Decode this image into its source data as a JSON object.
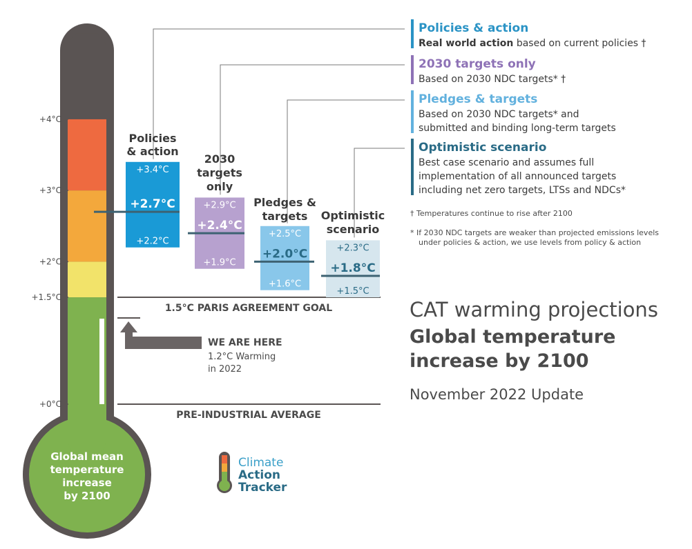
{
  "chart_data": {
    "type": "range-bar",
    "yunit": "°C",
    "ylim": [
      0,
      5.2
    ],
    "y_ticks": [
      {
        "value": 0,
        "label": "+0°C"
      },
      {
        "value": 1.5,
        "label": "+1.5°C"
      },
      {
        "value": 2,
        "label": "+2°C"
      },
      {
        "value": 3,
        "label": "+3°C"
      },
      {
        "value": 4,
        "label": "+4°C"
      }
    ],
    "thermometer_label": [
      "Global mean",
      "temperature",
      "increase",
      "by 2100"
    ],
    "color_bands": [
      {
        "from": 0,
        "to": 1.5,
        "color": "#7fb24f"
      },
      {
        "from": 1.5,
        "to": 2,
        "color": "#f2e36a"
      },
      {
        "from": 2,
        "to": 3,
        "color": "#f3a83c"
      },
      {
        "from": 3,
        "to": 4,
        "color": "#ee6a40"
      },
      {
        "from": 4,
        "to": 5.2,
        "color": "#5a5453"
      }
    ],
    "series": [
      {
        "name": "Policies & action",
        "label_lines": [
          "Policies",
          "& action"
        ],
        "low": 2.2,
        "median": 2.7,
        "high": 3.4,
        "low_label": "+2.2°C",
        "median_label": "+2.7°C",
        "high_label": "+3.4°C",
        "color": "#1a9ad6",
        "text_color": "#ffffff"
      },
      {
        "name": "2030 targets only",
        "label_lines": [
          "2030",
          "targets",
          "only"
        ],
        "low": 1.9,
        "median": 2.4,
        "high": 2.9,
        "low_label": "+1.9°C",
        "median_label": "+2.4°C",
        "high_label": "+2.9°C",
        "color": "#b7a1cf",
        "text_color": "#ffffff"
      },
      {
        "name": "Pledges & targets",
        "label_lines": [
          "Pledges &",
          "targets"
        ],
        "low": 1.6,
        "median": 2.0,
        "high": 2.5,
        "low_label": "+1.6°C",
        "median_label": "+2.0°C",
        "high_label": "+2.5°C",
        "color": "#89c7ea",
        "text_color": "#ffffff"
      },
      {
        "name": "Optimistic scenario",
        "label_lines": [
          "Optimistic",
          "scenario"
        ],
        "low": 1.5,
        "median": 1.8,
        "high": 2.3,
        "low_label": "+1.5°C",
        "median_label": "+1.8°C",
        "high_label": "+2.3°C",
        "color": "#d6e6ee",
        "text_color": "#2a6b86"
      }
    ],
    "reference_lines": [
      {
        "value": 1.5,
        "label": "1.5°C PARIS AGREEMENT GOAL"
      },
      {
        "value": 0,
        "label": "PRE-INDUSTRIAL AVERAGE"
      }
    ],
    "current": {
      "value": 1.2,
      "title": "WE ARE HERE",
      "lines": [
        "1.2°C Warming",
        "in 2022"
      ]
    }
  },
  "legend": [
    {
      "title": "Policies & action",
      "bold_prefix": "Real world action",
      "lines": [
        " based on current policies †"
      ],
      "color": "#2a93c5"
    },
    {
      "title": "2030 targets only",
      "bold_prefix": "",
      "lines": [
        "Based on 2030 NDC targets* †"
      ],
      "color": "#8e72b6"
    },
    {
      "title": "Pledges & targets",
      "bold_prefix": "",
      "lines": [
        "Based on 2030 NDC targets* and",
        "submitted and binding long-term targets"
      ],
      "color": "#62b1de"
    },
    {
      "title": "Optimistic scenario",
      "bold_prefix": "",
      "lines": [
        "Best case scenario and assumes full",
        "implementation of all announced targets",
        "including net zero targets, LTSs and NDCs*"
      ],
      "color": "#2a6b86"
    }
  ],
  "notes": [
    "† Temperatures continue to rise after 2100",
    "* If 2030 NDC targets are weaker than projected emissions levels",
    "under policies & action, we use levels from policy & action"
  ],
  "title_block": {
    "line1": "CAT warming projections",
    "line2": "Global temperature",
    "line3": "increase by 2100",
    "update": "November 2022 Update"
  },
  "logo": {
    "words": [
      "Climate",
      "Action",
      "Tracker"
    ],
    "colors": [
      "#3a9fc8",
      "#2a6b86",
      "#2a6b86"
    ]
  }
}
